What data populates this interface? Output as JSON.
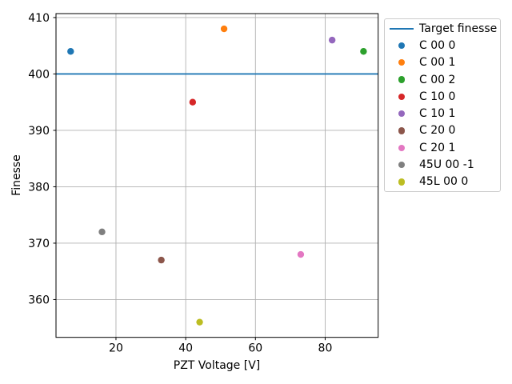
{
  "figure": {
    "background_color": "#ffffff",
    "title": ""
  },
  "chart_data": {
    "type": "scatter",
    "title": "",
    "xlabel": "PZT Voltage [V]",
    "ylabel": "Finesse",
    "xlim": [
      2.8,
      95.2
    ],
    "ylim": [
      353.3,
      410.7
    ],
    "xticks": [
      20,
      40,
      60,
      80
    ],
    "yticks": [
      360,
      370,
      380,
      390,
      400,
      410
    ],
    "grid": true,
    "grid_color": "#b0b0b0",
    "axis_color": "#000000",
    "legend_position": "outside-upper-right",
    "target_line": {
      "label": "Target finesse",
      "y": 400,
      "color": "#1f77b4"
    },
    "series": [
      {
        "name": "C 00 0",
        "color": "#1f77b4",
        "x": [
          7
        ],
        "y": [
          404
        ]
      },
      {
        "name": "C 00 1",
        "color": "#ff7f0e",
        "x": [
          51
        ],
        "y": [
          408
        ]
      },
      {
        "name": "C 00 2",
        "color": "#2ca02c",
        "x": [
          91
        ],
        "y": [
          404
        ]
      },
      {
        "name": "C 10 0",
        "color": "#d62728",
        "x": [
          42
        ],
        "y": [
          395
        ]
      },
      {
        "name": "C 10 1",
        "color": "#9467bd",
        "x": [
          82
        ],
        "y": [
          406
        ]
      },
      {
        "name": "C 20 0",
        "color": "#8c564b",
        "x": [
          33
        ],
        "y": [
          367
        ]
      },
      {
        "name": "C 20 1",
        "color": "#e377c2",
        "x": [
          73
        ],
        "y": [
          368
        ]
      },
      {
        "name": "45U 00 -1",
        "color": "#7f7f7f",
        "x": [
          16
        ],
        "y": [
          372
        ]
      },
      {
        "name": "45L 00 0",
        "color": "#bcbd22",
        "x": [
          44
        ],
        "y": [
          356
        ]
      }
    ]
  }
}
